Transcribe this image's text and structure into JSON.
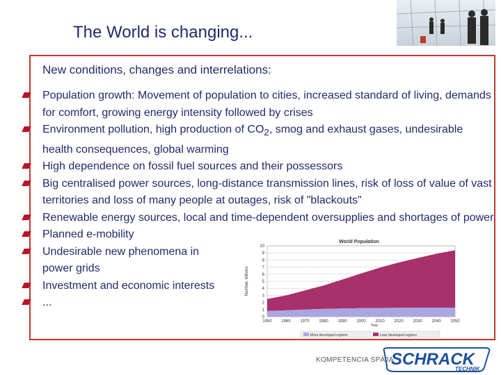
{
  "slide": {
    "title": "The World is changing...",
    "subtitle": "New conditions, changes and interrelations:",
    "bullets": [
      {
        "text": "Population growth: Movement of population to cities, increased standard of living, demands for comfort, growing energy intensity followed by crises"
      },
      {
        "pre": "Environment pollution, high production of CO",
        "sub": "2",
        "post": ", smog and exhaust gases, undesirable health consequences, global warming"
      },
      {
        "text": "High dependence on fossil fuel sources and their possessors"
      },
      {
        "text": "Big centralised power sources, long-distance transmission lines, risk of loss of value of vast territories and loss of many people at outages, risk of \"blackouts\""
      },
      {
        "text": "Renewable energy sources, local and time-dependent oversupplies and shortages of power"
      },
      {
        "text": "Planned e-mobility"
      },
      {
        "text": "Undesirable new phenomena in power grids"
      },
      {
        "text": "Investment and economic interests"
      },
      {
        "text": "..."
      }
    ],
    "footer": {
      "tagline": "KOMPETENCIA SPÁJA",
      "logo_main": "SCHRACK",
      "logo_sub": "TECHNIK"
    },
    "colors": {
      "title": "#1f2a6b",
      "bullet": "#b7142b",
      "frame": "#c0392b",
      "less_developed": "#a8306d",
      "more_developed": "#a9a6e0"
    }
  },
  "chart_data": {
    "type": "area",
    "title": "World Population",
    "xlabel": "Year",
    "ylabel": "Number, billions",
    "x": [
      1950,
      1960,
      1970,
      1980,
      1990,
      2000,
      2010,
      2020,
      2030,
      2040,
      2050
    ],
    "series": [
      {
        "name": "More developed regions",
        "values": [
          0.8,
          0.9,
          1.0,
          1.1,
          1.15,
          1.2,
          1.23,
          1.25,
          1.27,
          1.28,
          1.28
        ]
      },
      {
        "name": "Less developed regions",
        "values": [
          1.7,
          2.1,
          2.7,
          3.3,
          4.1,
          4.9,
          5.7,
          6.4,
          7.0,
          7.6,
          8.1
        ]
      }
    ],
    "yticks": [
      0,
      1,
      2,
      3,
      4,
      5,
      6,
      7,
      8,
      9,
      10
    ],
    "ylim": [
      0,
      10
    ],
    "legend": "bottom",
    "grid": true
  }
}
